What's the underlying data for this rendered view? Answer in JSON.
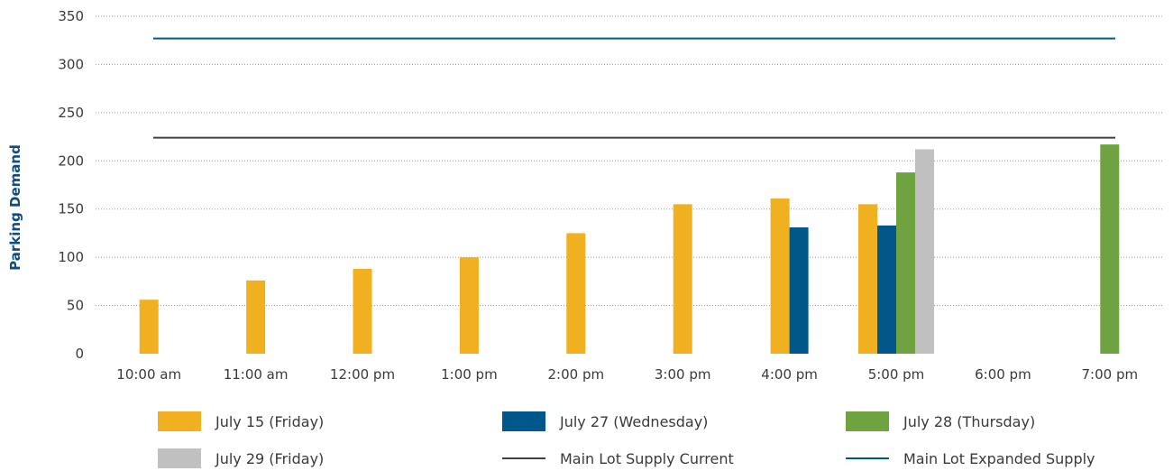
{
  "chart_data": {
    "type": "bar",
    "ylabel": "Parking Demand",
    "ylim": [
      0,
      350
    ],
    "yticks": [
      0,
      50,
      100,
      150,
      200,
      250,
      300,
      350
    ],
    "grid": "horizontal dotted",
    "categories": [
      "10:00 am",
      "11:00 am",
      "12:00 pm",
      "1:00 pm",
      "2:00 pm",
      "3:00 pm",
      "4:00 pm",
      "5:00 pm",
      "6:00 pm",
      "7:00 pm"
    ],
    "series": [
      {
        "name": "July 15 (Friday)",
        "color": "#f0b01f",
        "values": [
          56,
          76,
          88,
          100,
          125,
          155,
          161,
          155,
          null,
          null
        ]
      },
      {
        "name": "July 27 (Wednesday)",
        "color": "#00578a",
        "values": [
          null,
          null,
          null,
          null,
          null,
          null,
          131,
          133,
          null,
          null
        ]
      },
      {
        "name": "July 28 (Thursday)",
        "color": "#6fa241",
        "values": [
          null,
          null,
          null,
          null,
          null,
          null,
          null,
          188,
          null,
          217
        ]
      },
      {
        "name": "July 29 (Friday)",
        "color": "#c0c0c0",
        "values": [
          null,
          null,
          null,
          null,
          null,
          null,
          null,
          212,
          null,
          null
        ]
      }
    ],
    "lines": [
      {
        "name": "Main Lot Supply Current",
        "color": "#404040",
        "value": 224
      },
      {
        "name": "Main Lot Expanded Supply",
        "color": "#00578a",
        "value": 327
      }
    ],
    "legend": {
      "placement": "bottom",
      "entries": [
        {
          "label": "July 15 (Friday)",
          "kind": "swatch",
          "color": "#f0b01f"
        },
        {
          "label": "July 27 (Wednesday)",
          "kind": "swatch",
          "color": "#00578a"
        },
        {
          "label": "July 28 (Thursday)",
          "kind": "swatch",
          "color": "#6fa241"
        },
        {
          "label": "July 29 (Friday)",
          "kind": "swatch",
          "color": "#c0c0c0"
        },
        {
          "label": "Main Lot Supply Current",
          "kind": "line",
          "color": "#404040"
        },
        {
          "label": "Main Lot Expanded Supply",
          "kind": "line",
          "color": "#00578a"
        }
      ]
    }
  }
}
